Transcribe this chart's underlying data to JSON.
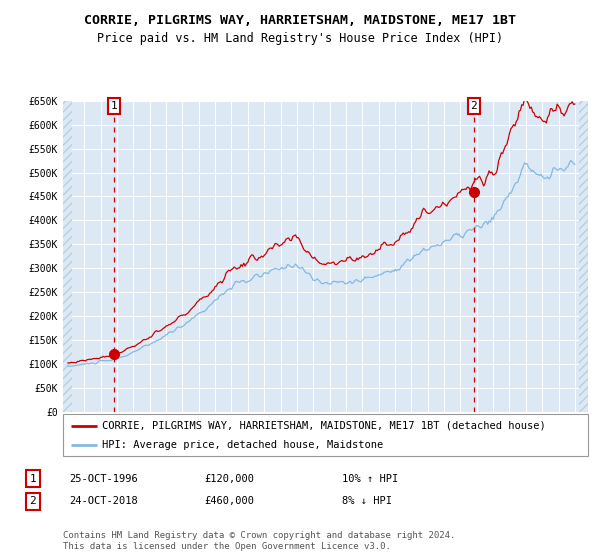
{
  "title": "CORRIE, PILGRIMS WAY, HARRIETSHAM, MAIDSTONE, ME17 1BT",
  "subtitle": "Price paid vs. HM Land Registry's House Price Index (HPI)",
  "background_color": "#dce9f5",
  "plot_bg_color": "#dce9f5",
  "hpi_line_color": "#85b8e0",
  "price_line_color": "#cc0000",
  "marker_color": "#cc0000",
  "vline_color": "#cc0000",
  "ylim": [
    0,
    650000
  ],
  "yticks": [
    0,
    50000,
    100000,
    150000,
    200000,
    250000,
    300000,
    350000,
    400000,
    450000,
    500000,
    550000,
    600000,
    650000
  ],
  "ytick_labels": [
    "£0",
    "£50K",
    "£100K",
    "£150K",
    "£200K",
    "£250K",
    "£300K",
    "£350K",
    "£400K",
    "£450K",
    "£500K",
    "£550K",
    "£600K",
    "£650K"
  ],
  "xlim_start": 1993.7,
  "xlim_end": 2025.8,
  "xticks": [
    1994,
    1995,
    1996,
    1997,
    1998,
    1999,
    2000,
    2001,
    2002,
    2003,
    2004,
    2005,
    2006,
    2007,
    2008,
    2009,
    2010,
    2011,
    2012,
    2013,
    2014,
    2015,
    2016,
    2017,
    2018,
    2019,
    2020,
    2021,
    2022,
    2023,
    2024,
    2025
  ],
  "sale1_x": 1996.81,
  "sale1_y": 120000,
  "sale2_x": 2018.81,
  "sale2_y": 460000,
  "legend_line1": "CORRIE, PILGRIMS WAY, HARRIETSHAM, MAIDSTONE, ME17 1BT (detached house)",
  "legend_line2": "HPI: Average price, detached house, Maidstone",
  "sale1_date": "25-OCT-1996",
  "sale1_price": "£120,000",
  "sale1_hpi": "10% ↑ HPI",
  "sale2_date": "24-OCT-2018",
  "sale2_price": "£460,000",
  "sale2_hpi": "8% ↓ HPI",
  "footer1": "Contains HM Land Registry data © Crown copyright and database right 2024.",
  "footer2": "This data is licensed under the Open Government Licence v3.0.",
  "title_fontsize": 9.5,
  "subtitle_fontsize": 8.5,
  "tick_fontsize": 7,
  "legend_fontsize": 7.5,
  "footer_fontsize": 6.5,
  "annotation_fontsize": 8
}
